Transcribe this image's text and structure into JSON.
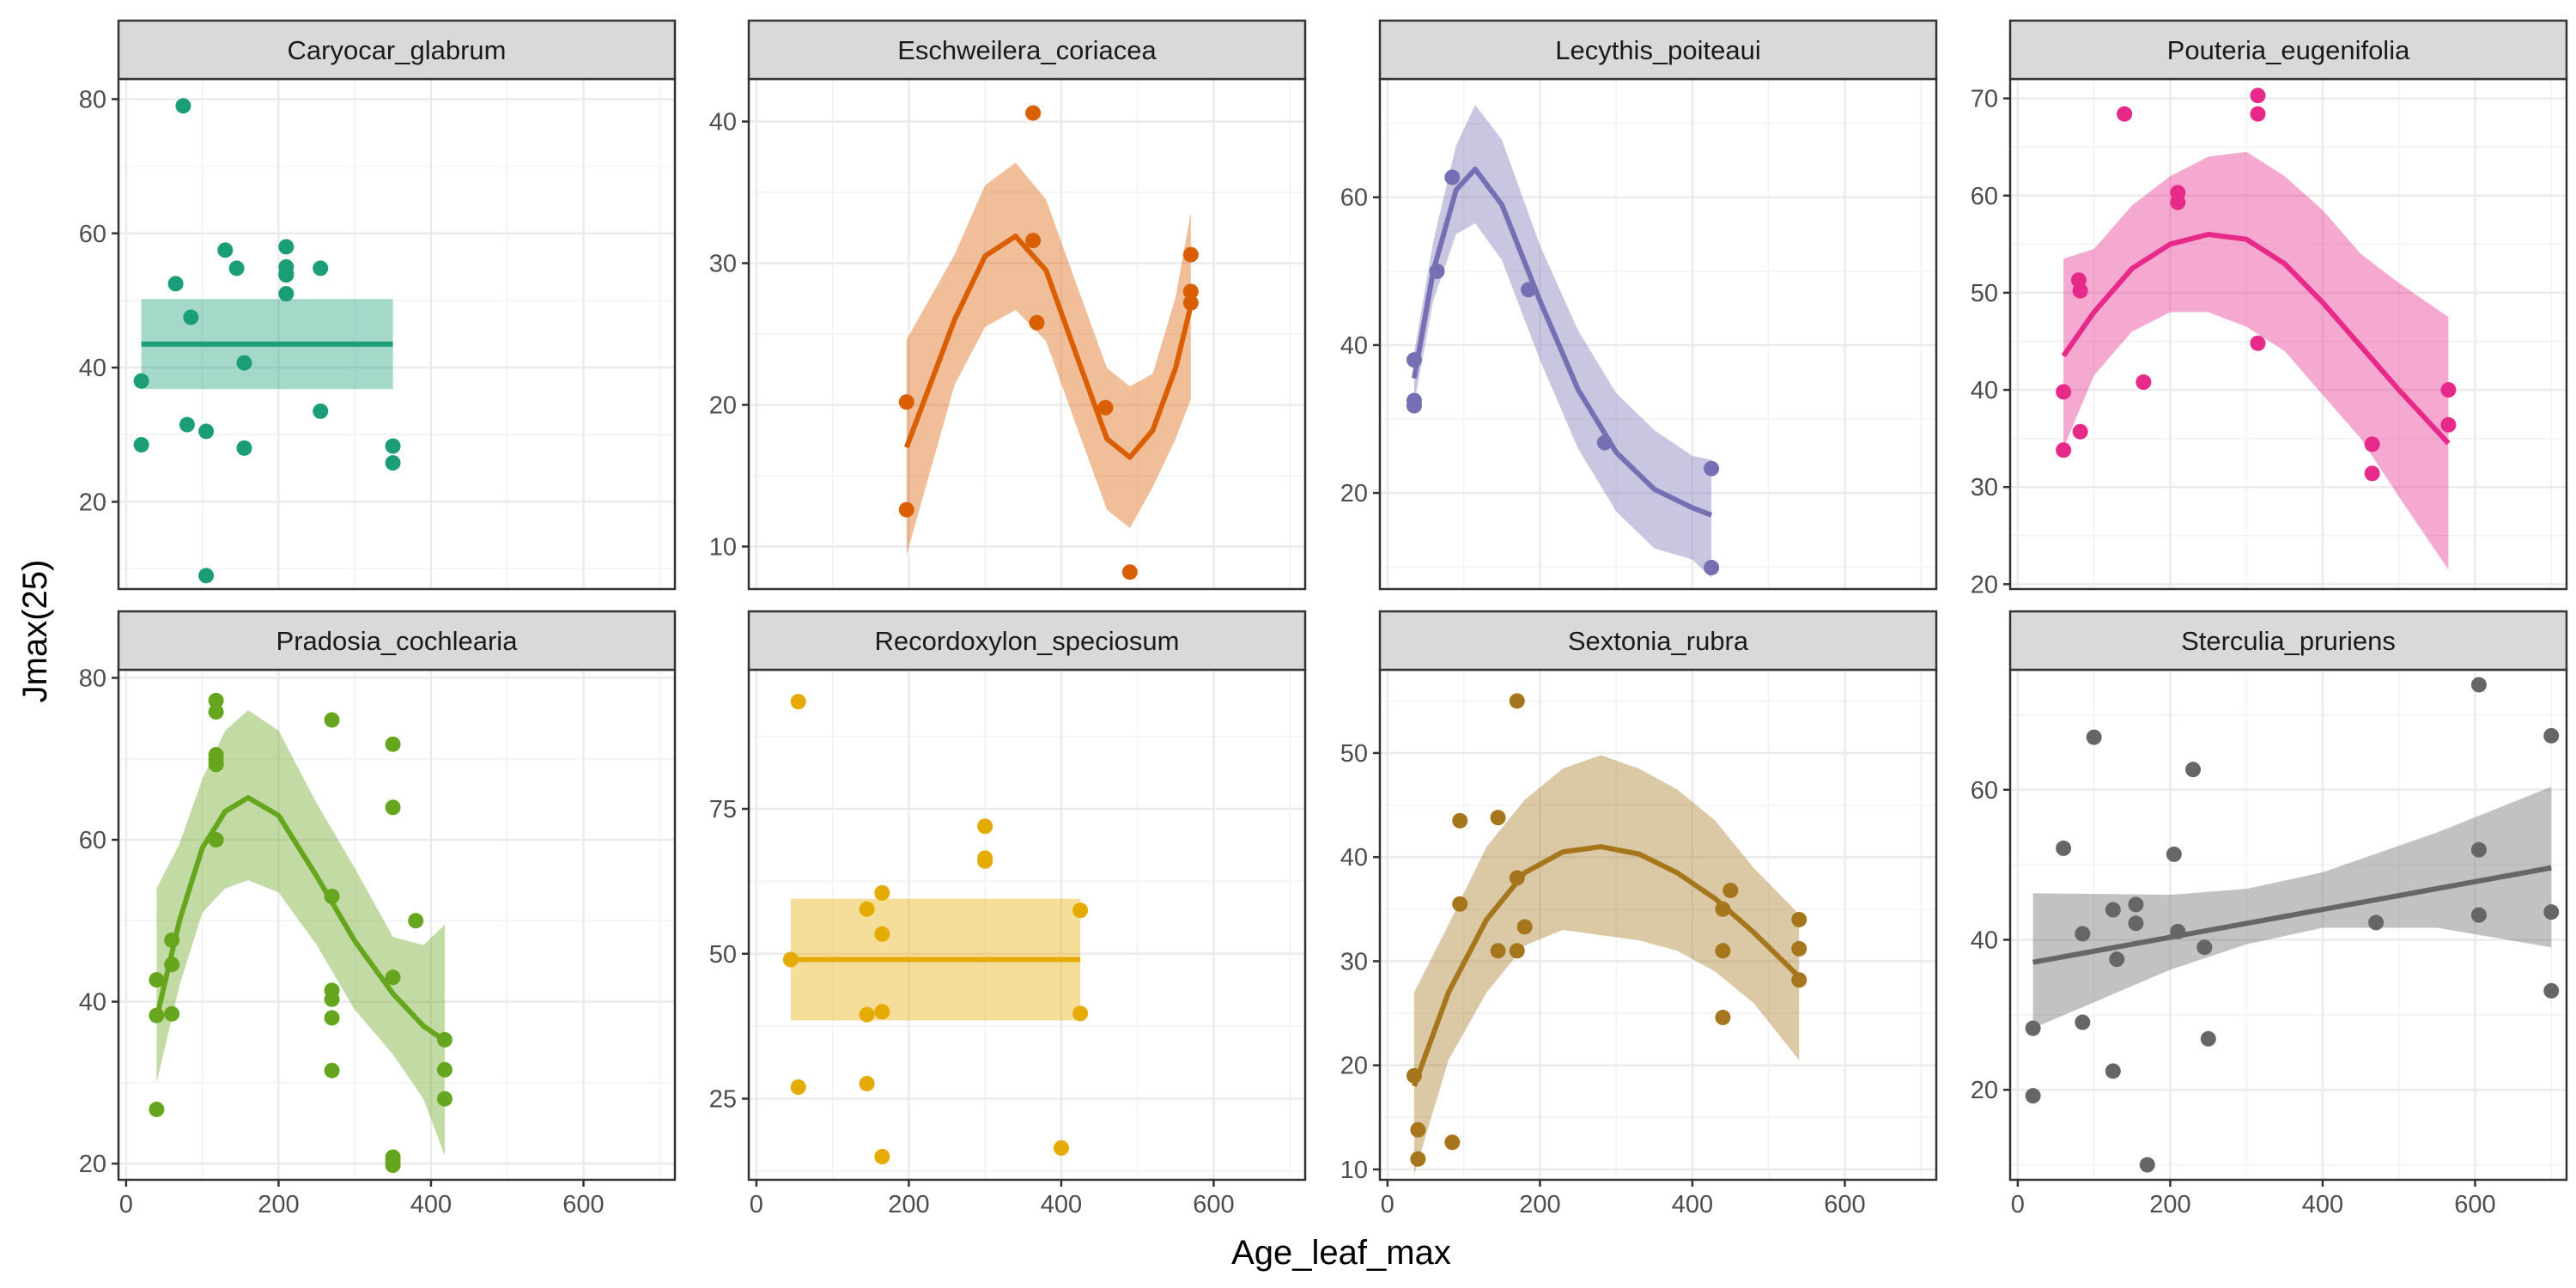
{
  "figure": {
    "xlabel": "Age_leaf_max",
    "ylabel": "Jmax(25)"
  },
  "chart_data": [
    {
      "type": "scatter",
      "title": "Caryocar_glabrum",
      "color": "#1b9e77",
      "xlim": [
        -10,
        720
      ],
      "ylim": [
        7,
        83
      ],
      "xticks": [
        0,
        200,
        400,
        600
      ],
      "yticks": [
        20,
        40,
        60,
        80
      ],
      "points": [
        [
          20,
          38
        ],
        [
          20,
          28.5
        ],
        [
          75,
          79
        ],
        [
          65,
          52.5
        ],
        [
          85,
          47.5
        ],
        [
          80,
          31.5
        ],
        [
          105,
          30.5
        ],
        [
          105,
          9
        ],
        [
          130,
          57.5
        ],
        [
          145,
          54.8
        ],
        [
          155,
          40.7
        ],
        [
          155,
          28
        ],
        [
          210,
          58
        ],
        [
          210,
          55
        ],
        [
          210,
          54
        ],
        [
          210,
          53.8
        ],
        [
          210,
          51
        ],
        [
          255,
          33.5
        ],
        [
          255,
          54.8
        ],
        [
          350,
          28.3
        ],
        [
          350,
          25.8
        ]
      ],
      "fit": [
        [
          20,
          43.5
        ],
        [
          350,
          43.5
        ]
      ],
      "band": [
        [
          20,
          50.2,
          36.8
        ],
        [
          350,
          50.2,
          36.8
        ]
      ]
    },
    {
      "type": "scatter",
      "title": "Eschweilera_coriacea",
      "color": "#d95f02",
      "xlim": [
        -10,
        720
      ],
      "ylim": [
        7,
        43
      ],
      "xticks": [
        0,
        200,
        400,
        600
      ],
      "yticks": [
        10,
        20,
        30,
        40
      ],
      "points": [
        [
          197,
          20.2
        ],
        [
          197,
          12.6
        ],
        [
          363,
          40.6
        ],
        [
          363,
          31.6
        ],
        [
          368,
          25.8
        ],
        [
          458,
          19.8
        ],
        [
          490,
          8.2
        ],
        [
          570,
          30.6
        ],
        [
          570,
          28
        ],
        [
          570,
          27.2
        ]
      ],
      "fit": [
        [
          197,
          17
        ],
        [
          260,
          26
        ],
        [
          300,
          30.5
        ],
        [
          340,
          31.9
        ],
        [
          380,
          29.5
        ],
        [
          420,
          23.5
        ],
        [
          460,
          17.6
        ],
        [
          490,
          16.3
        ],
        [
          520,
          18.2
        ],
        [
          550,
          22.6
        ],
        [
          570,
          27
        ]
      ],
      "band": [
        [
          197,
          24.6,
          9.4
        ],
        [
          260,
          30.6,
          21.4
        ],
        [
          300,
          35.5,
          25.5
        ],
        [
          340,
          37.1,
          26.7
        ],
        [
          380,
          34.5,
          24.5
        ],
        [
          420,
          28.5,
          18.5
        ],
        [
          460,
          22.6,
          12.6
        ],
        [
          490,
          21.3,
          11.3
        ],
        [
          520,
          22.2,
          14.2
        ],
        [
          550,
          27.6,
          17.6
        ],
        [
          570,
          33.6,
          20.4
        ]
      ]
    },
    {
      "type": "scatter",
      "title": "Lecythis_poiteaui",
      "color": "#7570b3",
      "xlim": [
        -10,
        720
      ],
      "ylim": [
        7,
        76
      ],
      "xticks": [
        0,
        200,
        400,
        600
      ],
      "yticks": [
        20,
        40,
        60
      ],
      "points": [
        [
          35,
          38
        ],
        [
          35,
          32.5
        ],
        [
          35,
          31.8
        ],
        [
          65,
          50
        ],
        [
          85,
          62.7
        ],
        [
          185,
          47.5
        ],
        [
          285,
          26.8
        ],
        [
          425,
          23.3
        ],
        [
          425,
          9.9
        ]
      ],
      "fit": [
        [
          35,
          35.5
        ],
        [
          60,
          50
        ],
        [
          90,
          61
        ],
        [
          115,
          63.8
        ],
        [
          150,
          59
        ],
        [
          200,
          46
        ],
        [
          250,
          34
        ],
        [
          300,
          25.5
        ],
        [
          350,
          20.5
        ],
        [
          400,
          18
        ],
        [
          425,
          17
        ]
      ],
      "band": [
        [
          35,
          39,
          32
        ],
        [
          60,
          54,
          46
        ],
        [
          90,
          67,
          55
        ],
        [
          115,
          72.5,
          56.5
        ],
        [
          150,
          67.8,
          51.5
        ],
        [
          200,
          53.5,
          38
        ],
        [
          250,
          42,
          26
        ],
        [
          300,
          33.5,
          17.5
        ],
        [
          350,
          28.5,
          12.5
        ],
        [
          400,
          25,
          11
        ],
        [
          425,
          24.5,
          8.5
        ]
      ]
    },
    {
      "type": "scatter",
      "title": "Pouteria_eugenifolia",
      "color": "#e7298a",
      "xlim": [
        -10,
        720
      ],
      "ylim": [
        19.5,
        72
      ],
      "xticks": [
        0,
        200,
        400,
        600
      ],
      "yticks": [
        20,
        30,
        40,
        50,
        60,
        70
      ],
      "points": [
        [
          60,
          39.8
        ],
        [
          60,
          33.8
        ],
        [
          80,
          51.3
        ],
        [
          82,
          50.2
        ],
        [
          82,
          35.7
        ],
        [
          140,
          68.4
        ],
        [
          165,
          40.8
        ],
        [
          210,
          60.3
        ],
        [
          210,
          59.3
        ],
        [
          315,
          70.3
        ],
        [
          315,
          68.4
        ],
        [
          315,
          44.8
        ],
        [
          465,
          34.4
        ],
        [
          465,
          31.4
        ],
        [
          565,
          40
        ],
        [
          565,
          36.4
        ]
      ],
      "fit": [
        [
          60,
          43.5
        ],
        [
          100,
          48
        ],
        [
          150,
          52.5
        ],
        [
          200,
          55
        ],
        [
          250,
          56
        ],
        [
          300,
          55.5
        ],
        [
          350,
          53
        ],
        [
          400,
          49
        ],
        [
          450,
          44.5
        ],
        [
          500,
          40
        ],
        [
          565,
          34.5
        ]
      ],
      "band": [
        [
          60,
          53.5,
          34
        ],
        [
          100,
          54.5,
          41.5
        ],
        [
          150,
          59,
          46
        ],
        [
          200,
          62,
          48
        ],
        [
          250,
          64,
          48
        ],
        [
          300,
          64.5,
          46.5
        ],
        [
          350,
          62,
          44
        ],
        [
          400,
          58.5,
          39.5
        ],
        [
          450,
          54,
          35
        ],
        [
          500,
          51,
          29
        ],
        [
          565,
          47.5,
          21.5
        ]
      ]
    },
    {
      "type": "scatter",
      "title": "Pradosia_cochlearia",
      "color": "#66a61e",
      "xlim": [
        -10,
        720
      ],
      "ylim": [
        18,
        81
      ],
      "xticks": [
        0,
        200,
        400,
        600
      ],
      "yticks": [
        20,
        40,
        60,
        80
      ],
      "points": [
        [
          40,
          42.7
        ],
        [
          40,
          38.3
        ],
        [
          40,
          26.7
        ],
        [
          60,
          47.6
        ],
        [
          60,
          44.6
        ],
        [
          60,
          38.5
        ],
        [
          118,
          77.2
        ],
        [
          118,
          75.8
        ],
        [
          118,
          70.5
        ],
        [
          118,
          69.9
        ],
        [
          118,
          69.3
        ],
        [
          118,
          60
        ],
        [
          270,
          74.8
        ],
        [
          270,
          53
        ],
        [
          270,
          41.4
        ],
        [
          270,
          40.3
        ],
        [
          270,
          38
        ],
        [
          270,
          31.5
        ],
        [
          350,
          71.8
        ],
        [
          350,
          64
        ],
        [
          350,
          43
        ],
        [
          350,
          20.8
        ],
        [
          350,
          20.3
        ],
        [
          350,
          19.8
        ],
        [
          380,
          50
        ],
        [
          418,
          35.3
        ],
        [
          418,
          31.6
        ],
        [
          418,
          28
        ]
      ],
      "fit": [
        [
          40,
          38
        ],
        [
          70,
          50
        ],
        [
          100,
          59
        ],
        [
          130,
          63.5
        ],
        [
          160,
          65.2
        ],
        [
          200,
          63
        ],
        [
          250,
          55.5
        ],
        [
          300,
          47.5
        ],
        [
          350,
          41
        ],
        [
          390,
          37
        ],
        [
          418,
          35.2
        ]
      ],
      "band": [
        [
          40,
          54,
          30
        ],
        [
          70,
          59.5,
          42
        ],
        [
          100,
          67.5,
          51
        ],
        [
          130,
          73.5,
          54
        ],
        [
          160,
          76,
          55
        ],
        [
          200,
          73.5,
          53.5
        ],
        [
          250,
          64.5,
          47
        ],
        [
          300,
          56.5,
          39
        ],
        [
          350,
          48,
          33.5
        ],
        [
          390,
          47,
          28
        ],
        [
          418,
          49.5,
          21
        ]
      ]
    },
    {
      "type": "scatter",
      "title": "Recordoxylon_speciosum",
      "color": "#e6ab02",
      "xlim": [
        -10,
        720
      ],
      "ylim": [
        11,
        99
      ],
      "xticks": [
        0,
        200,
        400,
        600
      ],
      "yticks": [
        25,
        50,
        75
      ],
      "points": [
        [
          45,
          49
        ],
        [
          55,
          93.5
        ],
        [
          55,
          27
        ],
        [
          145,
          57.7
        ],
        [
          145,
          39.5
        ],
        [
          145,
          27.6
        ],
        [
          165,
          60.5
        ],
        [
          165,
          53.4
        ],
        [
          165,
          40
        ],
        [
          165,
          15
        ],
        [
          300,
          72
        ],
        [
          300,
          66.5
        ],
        [
          300,
          66
        ],
        [
          400,
          16.5
        ],
        [
          425,
          57.5
        ],
        [
          425,
          39.7
        ]
      ],
      "fit": [
        [
          45,
          49
        ],
        [
          425,
          49
        ]
      ],
      "band": [
        [
          45,
          59.5,
          38.5
        ],
        [
          425,
          59.5,
          38.5
        ]
      ]
    },
    {
      "type": "scatter",
      "title": "Sextonia_rubra",
      "color": "#a6761d",
      "xlim": [
        -10,
        720
      ],
      "ylim": [
        9,
        58
      ],
      "xticks": [
        0,
        200,
        400,
        600
      ],
      "yticks": [
        10,
        20,
        30,
        40,
        50
      ],
      "points": [
        [
          35,
          19
        ],
        [
          40,
          13.8
        ],
        [
          40,
          11
        ],
        [
          85,
          12.6
        ],
        [
          95,
          43.5
        ],
        [
          95,
          35.5
        ],
        [
          145,
          43.8
        ],
        [
          145,
          31
        ],
        [
          170,
          55
        ],
        [
          170,
          38
        ],
        [
          170,
          31
        ],
        [
          180,
          33.3
        ],
        [
          440,
          35
        ],
        [
          440,
          31
        ],
        [
          440,
          24.6
        ],
        [
          450,
          36.8
        ],
        [
          540,
          34
        ],
        [
          540,
          31.2
        ],
        [
          540,
          28.2
        ]
      ],
      "fit": [
        [
          35,
          18
        ],
        [
          80,
          27
        ],
        [
          130,
          34
        ],
        [
          180,
          38.5
        ],
        [
          230,
          40.5
        ],
        [
          280,
          41
        ],
        [
          330,
          40.3
        ],
        [
          380,
          38.5
        ],
        [
          430,
          36
        ],
        [
          480,
          32.8
        ],
        [
          540,
          28.5
        ]
      ],
      "band": [
        [
          35,
          27,
          9.5
        ],
        [
          80,
          33.5,
          20.5
        ],
        [
          130,
          41,
          27
        ],
        [
          180,
          45.5,
          31.5
        ],
        [
          230,
          48.5,
          33
        ],
        [
          280,
          49.8,
          32.5
        ],
        [
          330,
          48.5,
          32
        ],
        [
          380,
          46.5,
          31
        ],
        [
          430,
          43.5,
          29
        ],
        [
          480,
          39,
          26
        ],
        [
          540,
          34.5,
          20.5
        ]
      ]
    },
    {
      "type": "scatter",
      "title": "Sterculia_pruriens",
      "color": "#666666",
      "xlim": [
        -10,
        720
      ],
      "ylim": [
        8,
        76
      ],
      "xticks": [
        0,
        200,
        400,
        600
      ],
      "yticks": [
        20,
        40,
        60
      ],
      "points": [
        [
          20,
          28.2
        ],
        [
          20,
          19.2
        ],
        [
          60,
          52.2
        ],
        [
          85,
          40.8
        ],
        [
          85,
          29
        ],
        [
          100,
          67
        ],
        [
          125,
          44
        ],
        [
          125,
          22.5
        ],
        [
          130,
          37.4
        ],
        [
          155,
          44.7
        ],
        [
          155,
          42.2
        ],
        [
          170,
          10
        ],
        [
          205,
          51.4
        ],
        [
          210,
          41.1
        ],
        [
          230,
          62.7
        ],
        [
          245,
          39
        ],
        [
          250,
          26.8
        ],
        [
          470,
          42.3
        ],
        [
          605,
          74
        ],
        [
          605,
          52
        ],
        [
          605,
          43.3
        ],
        [
          700,
          67.2
        ],
        [
          700,
          43.7
        ],
        [
          700,
          33.2
        ]
      ],
      "fit": [
        [
          20,
          37
        ],
        [
          700,
          49.6
        ]
      ],
      "band": [
        [
          20,
          46.2,
          28.2
        ],
        [
          200,
          46,
          36
        ],
        [
          300,
          46.8,
          39.4
        ],
        [
          400,
          49,
          41.6
        ],
        [
          550,
          54.3,
          41.6
        ],
        [
          700,
          60.4,
          39
        ]
      ]
    }
  ]
}
